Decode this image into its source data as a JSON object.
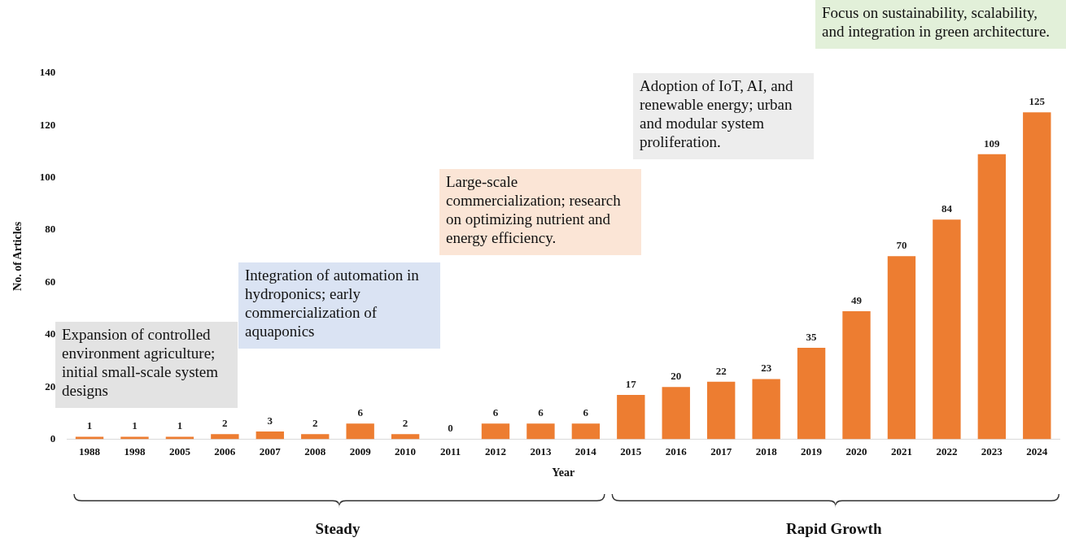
{
  "chart_data": {
    "type": "bar",
    "xlabel": "Year",
    "ylabel": "No. of Articles",
    "categories": [
      "1988",
      "1998",
      "2005",
      "2006",
      "2007",
      "2008",
      "2009",
      "2010",
      "2011",
      "2012",
      "2013",
      "2014",
      "2015",
      "2016",
      "2017",
      "2018",
      "2019",
      "2020",
      "2021",
      "2022",
      "2023",
      "2024"
    ],
    "values": [
      1,
      1,
      1,
      2,
      3,
      2,
      6,
      2,
      0,
      6,
      6,
      6,
      17,
      20,
      22,
      23,
      35,
      49,
      70,
      84,
      109,
      125
    ],
    "color": "#ed7d31",
    "ylim": [
      0,
      140
    ],
    "yticks": [
      0,
      20,
      40,
      60,
      80,
      100,
      120,
      140
    ],
    "data_labels": true,
    "grid": false,
    "legend": false,
    "annotations": [
      "Expansion of controlled environment agriculture; initial small-scale system designs",
      "Integration of automation in hydroponics; early commercialization of aquaponics",
      "Large-scale commercialization; research on optimizing nutrient and energy efficiency.",
      "Adoption of IoT, AI, and renewable energy; urban and modular system proliferation.",
      "Focus on sustainability, scalability, and integration in green architecture.",
      "Steady",
      "Rapid Growth"
    ]
  }
}
